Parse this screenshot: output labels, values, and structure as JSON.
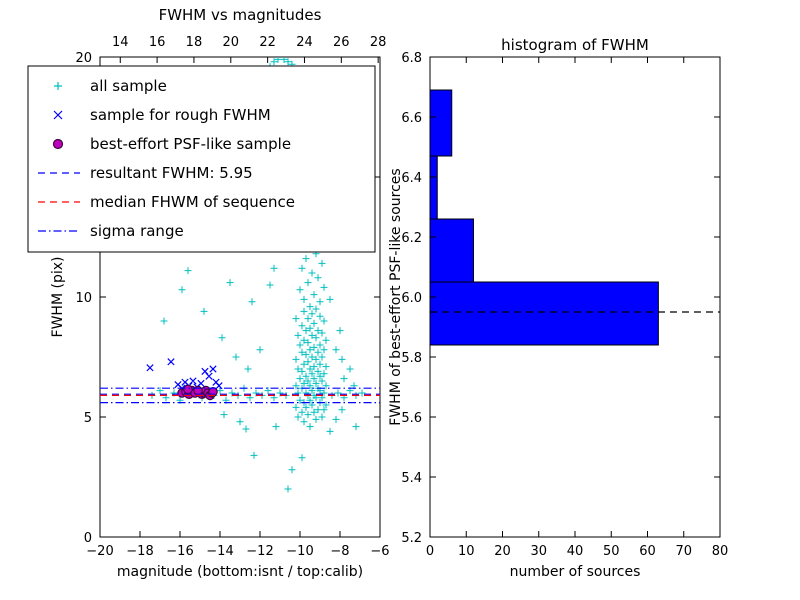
{
  "figure": {
    "background": "#ffffff"
  },
  "chart_data": [
    {
      "type": "scatter",
      "title": "FWHM vs magnitudes",
      "xlabel": "magnitude (bottom:isnt / top:calib)",
      "ylabel": "FWHM (pix)",
      "xlim": [
        -20,
        -6
      ],
      "ylim": [
        0,
        20
      ],
      "top_xlim": [
        12.9,
        28.1
      ],
      "x_ticks": [
        -20,
        -18,
        -16,
        -14,
        -12,
        -10,
        -8,
        -6
      ],
      "top_ticks": [
        14,
        16,
        18,
        20,
        22,
        24,
        26,
        28
      ],
      "y_ticks": [
        0,
        5,
        10,
        15,
        20
      ],
      "series": [
        {
          "name": "all sample",
          "marker": "plus",
          "color": "#00bfbf",
          "points": [
            [
              -9.5,
              4.6
            ],
            [
              -9.8,
              4.8
            ],
            [
              -9.2,
              4.9
            ],
            [
              -10.1,
              5.0
            ],
            [
              -8.9,
              5.0
            ],
            [
              -9.6,
              5.1
            ],
            [
              -9.3,
              5.2
            ],
            [
              -9.9,
              5.2
            ],
            [
              -8.8,
              5.3
            ],
            [
              -9.1,
              5.3
            ],
            [
              -9.7,
              5.4
            ],
            [
              -10.2,
              5.4
            ],
            [
              -9.4,
              5.5
            ],
            [
              -8.7,
              5.5
            ],
            [
              -9.0,
              5.6
            ],
            [
              -9.8,
              5.6
            ],
            [
              -9.5,
              5.7
            ],
            [
              -10.0,
              5.7
            ],
            [
              -9.2,
              5.8
            ],
            [
              -8.9,
              5.8
            ],
            [
              -9.6,
              5.9
            ],
            [
              -9.3,
              5.9
            ],
            [
              -10.1,
              6.0
            ],
            [
              -8.8,
              6.0
            ],
            [
              -9.7,
              6.0
            ],
            [
              -9.0,
              6.1
            ],
            [
              -9.4,
              6.1
            ],
            [
              -9.9,
              6.2
            ],
            [
              -9.1,
              6.2
            ],
            [
              -8.7,
              6.3
            ],
            [
              -9.5,
              6.3
            ],
            [
              -10.2,
              6.3
            ],
            [
              -9.8,
              6.4
            ],
            [
              -9.2,
              6.4
            ],
            [
              -8.9,
              6.5
            ],
            [
              -9.6,
              6.5
            ],
            [
              -9.3,
              6.6
            ],
            [
              -10.0,
              6.6
            ],
            [
              -9.0,
              6.7
            ],
            [
              -9.7,
              6.7
            ],
            [
              -9.4,
              6.8
            ],
            [
              -8.8,
              6.8
            ],
            [
              -9.1,
              6.9
            ],
            [
              -9.9,
              6.9
            ],
            [
              -9.5,
              7.0
            ],
            [
              -10.1,
              7.0
            ],
            [
              -8.7,
              7.1
            ],
            [
              -9.3,
              7.1
            ],
            [
              -9.8,
              7.2
            ],
            [
              -9.0,
              7.2
            ],
            [
              -9.6,
              7.3
            ],
            [
              -9.2,
              7.4
            ],
            [
              -10.2,
              7.4
            ],
            [
              -8.9,
              7.5
            ],
            [
              -9.4,
              7.5
            ],
            [
              -9.7,
              7.6
            ],
            [
              -9.1,
              7.7
            ],
            [
              -9.9,
              7.7
            ],
            [
              -8.8,
              7.8
            ],
            [
              -9.5,
              7.8
            ],
            [
              -9.3,
              7.9
            ],
            [
              -10.0,
              8.0
            ],
            [
              -9.0,
              8.0
            ],
            [
              -9.6,
              8.1
            ],
            [
              -8.7,
              8.2
            ],
            [
              -9.8,
              8.2
            ],
            [
              -9.2,
              8.3
            ],
            [
              -9.4,
              8.4
            ],
            [
              -10.1,
              8.4
            ],
            [
              -8.9,
              8.5
            ],
            [
              -9.7,
              8.6
            ],
            [
              -9.1,
              8.6
            ],
            [
              -9.5,
              8.7
            ],
            [
              -9.9,
              8.8
            ],
            [
              -9.3,
              8.9
            ],
            [
              -8.8,
              9.0
            ],
            [
              -9.6,
              9.1
            ],
            [
              -10.2,
              9.1
            ],
            [
              -9.0,
              9.2
            ],
            [
              -9.4,
              9.3
            ],
            [
              -9.8,
              9.4
            ],
            [
              -9.2,
              9.5
            ],
            [
              -9.5,
              9.6
            ],
            [
              -9.0,
              9.8
            ],
            [
              -9.8,
              9.9
            ],
            [
              -9.3,
              10.1
            ],
            [
              -10.0,
              10.3
            ],
            [
              -8.8,
              10.4
            ],
            [
              -9.6,
              10.6
            ],
            [
              -9.1,
              10.8
            ],
            [
              -9.4,
              11.0
            ],
            [
              -9.9,
              11.2
            ],
            [
              -8.9,
              11.4
            ],
            [
              -9.7,
              11.6
            ],
            [
              -9.2,
              11.8
            ],
            [
              -10.1,
              12.0
            ],
            [
              -9.5,
              12.2
            ],
            [
              -8.7,
              12.4
            ],
            [
              -9.3,
              12.6
            ],
            [
              -9.8,
              12.9
            ],
            [
              -9.0,
              13.1
            ],
            [
              -9.6,
              13.3
            ],
            [
              -10.2,
              13.5
            ],
            [
              -11.5,
              13.8
            ],
            [
              -10.8,
              14.0
            ],
            [
              -11.2,
              14.3
            ],
            [
              -9.8,
              14.5
            ],
            [
              -11.6,
              14.8
            ],
            [
              -10.4,
              15.0
            ],
            [
              -11.0,
              15.3
            ],
            [
              -11.4,
              15.6
            ],
            [
              -10.0,
              15.8
            ],
            [
              -11.7,
              16.0
            ],
            [
              -10.6,
              16.3
            ],
            [
              -11.1,
              16.6
            ],
            [
              -11.5,
              16.9
            ],
            [
              -10.2,
              17.1
            ],
            [
              -11.3,
              17.4
            ],
            [
              -10.9,
              17.7
            ],
            [
              -11.6,
              17.9
            ],
            [
              -10.5,
              18.2
            ],
            [
              -11.0,
              18.5
            ],
            [
              -11.4,
              18.7
            ],
            [
              -10.7,
              18.9
            ],
            [
              -11.2,
              19.1
            ],
            [
              -10.3,
              19.3
            ],
            [
              -10.9,
              19.5
            ],
            [
              -11.5,
              19.6
            ],
            [
              -10.6,
              19.8
            ],
            [
              -11.1,
              19.9
            ],
            [
              -10.4,
              19.7
            ],
            [
              -10.8,
              19.9
            ],
            [
              -11.3,
              19.8
            ],
            [
              -12.3,
              15.5
            ],
            [
              -12.0,
              17.0
            ],
            [
              -12.4,
              18.0
            ],
            [
              -11.9,
              19.0
            ],
            [
              -12.2,
              12.5
            ],
            [
              -17.4,
              5.9
            ],
            [
              -17.0,
              6.1
            ],
            [
              -16.7,
              5.8
            ],
            [
              -16.3,
              6.0
            ],
            [
              -16.0,
              5.7
            ],
            [
              -15.8,
              6.2
            ],
            [
              -15.5,
              5.9
            ],
            [
              -15.2,
              6.1
            ],
            [
              -14.9,
              5.8
            ],
            [
              -14.6,
              6.0
            ],
            [
              -14.3,
              5.9
            ],
            [
              -14.0,
              6.1
            ],
            [
              -13.7,
              5.7
            ],
            [
              -13.4,
              6.0
            ],
            [
              -13.1,
              5.9
            ],
            [
              -12.8,
              6.2
            ],
            [
              -12.5,
              5.8
            ],
            [
              -12.2,
              6.0
            ],
            [
              -11.9,
              5.9
            ],
            [
              -11.6,
              6.1
            ],
            [
              -11.3,
              5.8
            ],
            [
              -11.0,
              6.0
            ],
            [
              -10.7,
              5.9
            ],
            [
              -8.4,
              5.9
            ],
            [
              -8.1,
              6.0
            ],
            [
              -7.8,
              5.8
            ],
            [
              -7.5,
              6.1
            ],
            [
              -7.2,
              5.9
            ],
            [
              -6.9,
              6.0
            ],
            [
              -16.4,
              12.6
            ],
            [
              -15.9,
              10.3
            ],
            [
              -17.1,
              13.0
            ],
            [
              -15.6,
              11.1
            ],
            [
              -16.8,
              9.0
            ],
            [
              -14.8,
              9.4
            ],
            [
              -13.9,
              8.3
            ],
            [
              -13.2,
              7.5
            ],
            [
              -12.6,
              7.0
            ],
            [
              -12.0,
              7.8
            ],
            [
              -12.4,
              9.8
            ],
            [
              -13.5,
              10.6
            ],
            [
              -13.0,
              4.8
            ],
            [
              -12.7,
              4.5
            ],
            [
              -10.6,
              2.0
            ],
            [
              -8.5,
              4.4
            ],
            [
              -9.9,
              3.3
            ],
            [
              -8.2,
              4.9
            ],
            [
              -11.2,
              4.6
            ],
            [
              -7.9,
              5.3
            ],
            [
              -13.8,
              5.1
            ],
            [
              -12.3,
              3.4
            ],
            [
              -10.4,
              2.8
            ],
            [
              -7.2,
              4.6
            ],
            [
              -11.5,
              10.5
            ],
            [
              -11.3,
              11.2
            ],
            [
              -11.6,
              12.0
            ],
            [
              -11.2,
              12.8
            ],
            [
              -11.4,
              13.3
            ],
            [
              -7.8,
              6.6
            ],
            [
              -7.5,
              7.0
            ],
            [
              -7.9,
              7.4
            ],
            [
              -7.3,
              6.3
            ],
            [
              -8.2,
              7.8
            ],
            [
              -8.0,
              8.6
            ],
            [
              -8.5,
              9.9
            ]
          ]
        },
        {
          "name": "sample for rough FWHM",
          "marker": "x",
          "color": "#0000ff",
          "points": [
            [
              -17.5,
              7.05
            ],
            [
              -16.45,
              7.3
            ],
            [
              -16.1,
              6.35
            ],
            [
              -15.9,
              6.2
            ],
            [
              -15.75,
              6.45
            ],
            [
              -15.55,
              6.3
            ],
            [
              -15.35,
              6.5
            ],
            [
              -15.15,
              6.25
            ],
            [
              -14.95,
              6.4
            ],
            [
              -14.75,
              6.9
            ],
            [
              -14.55,
              6.7
            ],
            [
              -14.35,
              7.0
            ],
            [
              -14.2,
              6.45
            ],
            [
              -14.05,
              6.3
            ],
            [
              -15.0,
              6.1
            ]
          ]
        },
        {
          "name": "best-effort PSF-like sample",
          "marker": "circle",
          "fill": "#bf00bf",
          "edge": "#3d083d",
          "points": [
            [
              -15.9,
              6.0
            ],
            [
              -15.7,
              6.05
            ],
            [
              -15.55,
              5.95
            ],
            [
              -15.4,
              6.1
            ],
            [
              -15.25,
              6.0
            ],
            [
              -15.05,
              6.05
            ],
            [
              -14.9,
              5.95
            ],
            [
              -14.8,
              6.0
            ],
            [
              -14.7,
              6.1
            ],
            [
              -14.6,
              6.0
            ],
            [
              -14.5,
              5.9
            ],
            [
              -14.4,
              6.0
            ],
            [
              -15.6,
              6.15
            ],
            [
              -15.1,
              6.1
            ],
            [
              -14.35,
              6.05
            ]
          ]
        }
      ],
      "hlines": [
        {
          "name": "resultant FWHM: 5.95",
          "y": 5.95,
          "color": "#0000ff",
          "style": "dashed"
        },
        {
          "name": "median FHWM of sequence",
          "y": 5.9,
          "color": "#ff0000",
          "style": "dashed"
        },
        {
          "name": "sigma range low",
          "y": 5.6,
          "color": "#0000ff",
          "style": "dashdot"
        },
        {
          "name": "sigma range high",
          "y": 6.2,
          "color": "#0000ff",
          "style": "dashdot"
        }
      ],
      "legend": {
        "items": [
          {
            "label": "all sample",
            "marker": "plus",
            "color": "#00bfbf",
            "icon": "plus-marker-icon"
          },
          {
            "label": "sample for rough FWHM",
            "marker": "x",
            "color": "#0000ff",
            "icon": "x-marker-icon"
          },
          {
            "label": "best-effort PSF-like sample",
            "marker": "circle",
            "color": "#bf00bf",
            "icon": "circle-marker-icon"
          },
          {
            "label": "resultant FWHM: 5.95",
            "marker": "dashed",
            "color": "#0000ff",
            "icon": "dashed-line-icon"
          },
          {
            "label": "median FHWM of sequence",
            "marker": "dashed",
            "color": "#ff0000",
            "icon": "dashed-line-icon"
          },
          {
            "label": "sigma range",
            "marker": "dashdot",
            "color": "#0000ff",
            "icon": "dashdot-line-icon"
          }
        ]
      }
    },
    {
      "type": "bar",
      "orientation": "horizontal",
      "title": "histogram of FWHM",
      "xlabel": "number of sources",
      "ylabel": "FWHM of best-effort PSF-like sources",
      "xlim": [
        0,
        80
      ],
      "ylim": [
        5.2,
        6.8
      ],
      "x_ticks": [
        0,
        10,
        20,
        30,
        40,
        50,
        60,
        70,
        80
      ],
      "y_ticks": [
        5.2,
        5.4,
        5.6,
        5.8,
        6.0,
        6.2,
        6.4,
        6.6,
        6.8
      ],
      "bin_edges": [
        5.84,
        6.05,
        6.26,
        6.47,
        6.69
      ],
      "counts": [
        63,
        12,
        2,
        6
      ],
      "bar_color": "#0000ff",
      "bar_edge": "#000000",
      "median_line": {
        "y": 5.95,
        "color": "#000000",
        "style": "dashed"
      }
    }
  ]
}
